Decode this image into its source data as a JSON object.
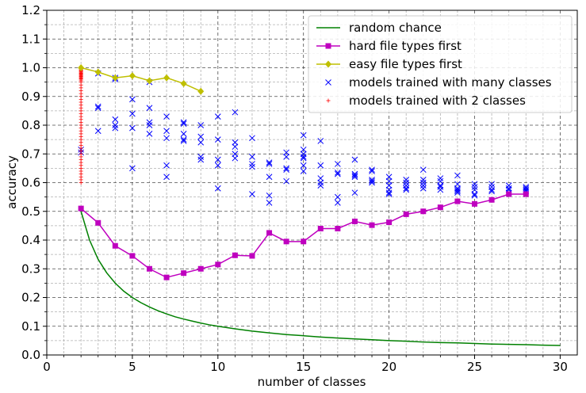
{
  "chart_data": {
    "type": "line",
    "xlabel": "number of classes",
    "ylabel": "accuracy",
    "xlim": [
      0,
      31
    ],
    "ylim": [
      0,
      1.2
    ],
    "x_ticks": [
      "0",
      "5",
      "10",
      "15",
      "20",
      "25",
      "30"
    ],
    "y_ticks": [
      "0.0",
      "0.1",
      "0.2",
      "0.3",
      "0.4",
      "0.5",
      "0.6",
      "0.7",
      "0.8",
      "0.9",
      "1.0",
      "1.1",
      "1.2"
    ],
    "grid": true,
    "legend_position": "top-right",
    "series": [
      {
        "name": "random chance",
        "style": "line",
        "color": "#008000",
        "x": [
          2,
          2.5,
          3,
          3.5,
          4,
          4.5,
          5,
          5.5,
          6,
          6.5,
          7,
          7.5,
          8,
          8.5,
          9,
          9.5,
          10,
          11,
          12,
          13,
          14,
          15,
          16,
          17,
          18,
          19,
          20,
          21,
          22,
          23,
          24,
          25,
          26,
          27,
          28,
          29,
          30
        ],
        "y": [
          0.5,
          0.4,
          0.333,
          0.286,
          0.25,
          0.222,
          0.2,
          0.182,
          0.167,
          0.154,
          0.143,
          0.133,
          0.125,
          0.118,
          0.111,
          0.105,
          0.1,
          0.091,
          0.083,
          0.077,
          0.071,
          0.067,
          0.0625,
          0.059,
          0.056,
          0.053,
          0.05,
          0.048,
          0.045,
          0.043,
          0.042,
          0.04,
          0.038,
          0.037,
          0.036,
          0.034,
          0.033
        ]
      },
      {
        "name": "hard file types first",
        "style": "line-square",
        "color": "#bf00bf",
        "x": [
          2,
          3,
          4,
          5,
          6,
          7,
          8,
          9,
          10,
          11,
          12,
          13,
          14,
          15,
          16,
          17,
          18,
          19,
          20,
          21,
          22,
          23,
          24,
          25,
          26,
          27,
          28
        ],
        "y": [
          0.51,
          0.46,
          0.38,
          0.345,
          0.3,
          0.27,
          0.285,
          0.3,
          0.315,
          0.347,
          0.345,
          0.425,
          0.395,
          0.395,
          0.44,
          0.44,
          0.465,
          0.452,
          0.462,
          0.49,
          0.5,
          0.514,
          0.535,
          0.526,
          0.54,
          0.56,
          0.56
        ]
      },
      {
        "name": "easy file types first",
        "style": "line-diamond",
        "color": "#bfbf00",
        "x": [
          2,
          3,
          4,
          5,
          6,
          7,
          8,
          9
        ],
        "y": [
          1.0,
          0.985,
          0.965,
          0.972,
          0.955,
          0.965,
          0.945,
          0.918
        ]
      },
      {
        "name": "models trained with many classes",
        "style": "x",
        "color": "#0000ff",
        "points": [
          [
            2,
            0.715
          ],
          [
            2,
            0.705
          ],
          [
            3,
            0.98
          ],
          [
            3,
            0.86
          ],
          [
            3,
            0.865
          ],
          [
            3,
            0.78
          ],
          [
            4,
            0.96
          ],
          [
            4,
            0.965
          ],
          [
            4,
            0.82
          ],
          [
            4,
            0.8
          ],
          [
            4,
            0.79
          ],
          [
            5,
            0.89
          ],
          [
            5,
            0.84
          ],
          [
            5,
            0.79
          ],
          [
            5,
            0.65
          ],
          [
            6,
            0.95
          ],
          [
            6,
            0.86
          ],
          [
            6,
            0.81
          ],
          [
            6,
            0.8
          ],
          [
            6,
            0.77
          ],
          [
            7,
            0.83
          ],
          [
            7,
            0.78
          ],
          [
            7,
            0.755
          ],
          [
            7,
            0.66
          ],
          [
            7,
            0.62
          ],
          [
            8,
            0.81
          ],
          [
            8,
            0.805
          ],
          [
            8,
            0.77
          ],
          [
            8,
            0.75
          ],
          [
            8,
            0.745
          ],
          [
            9,
            0.8
          ],
          [
            9,
            0.76
          ],
          [
            9,
            0.74
          ],
          [
            9,
            0.69
          ],
          [
            9,
            0.68
          ],
          [
            10,
            0.83
          ],
          [
            10,
            0.75
          ],
          [
            10,
            0.68
          ],
          [
            10,
            0.66
          ],
          [
            10,
            0.58
          ],
          [
            11,
            0.845
          ],
          [
            11,
            0.74
          ],
          [
            11,
            0.725
          ],
          [
            11,
            0.7
          ],
          [
            11,
            0.685
          ],
          [
            12,
            0.755
          ],
          [
            12,
            0.69
          ],
          [
            12,
            0.665
          ],
          [
            12,
            0.655
          ],
          [
            12,
            0.56
          ],
          [
            13,
            0.67
          ],
          [
            13,
            0.665
          ],
          [
            13,
            0.62
          ],
          [
            13,
            0.555
          ],
          [
            13,
            0.53
          ],
          [
            14,
            0.705
          ],
          [
            14,
            0.69
          ],
          [
            14,
            0.65
          ],
          [
            14,
            0.645
          ],
          [
            14,
            0.605
          ],
          [
            15,
            0.765
          ],
          [
            15,
            0.715
          ],
          [
            15,
            0.7
          ],
          [
            15,
            0.69
          ],
          [
            15,
            0.685
          ],
          [
            15,
            0.66
          ],
          [
            15,
            0.64
          ],
          [
            16,
            0.745
          ],
          [
            16,
            0.66
          ],
          [
            16,
            0.615
          ],
          [
            16,
            0.6
          ],
          [
            16,
            0.59
          ],
          [
            17,
            0.665
          ],
          [
            17,
            0.635
          ],
          [
            17,
            0.63
          ],
          [
            17,
            0.55
          ],
          [
            17,
            0.53
          ],
          [
            18,
            0.68
          ],
          [
            18,
            0.63
          ],
          [
            18,
            0.625
          ],
          [
            18,
            0.62
          ],
          [
            18,
            0.565
          ],
          [
            19,
            0.645
          ],
          [
            19,
            0.64
          ],
          [
            19,
            0.61
          ],
          [
            19,
            0.605
          ],
          [
            19,
            0.6
          ],
          [
            20,
            0.62
          ],
          [
            20,
            0.605
          ],
          [
            20,
            0.59
          ],
          [
            20,
            0.575
          ],
          [
            20,
            0.565
          ],
          [
            20,
            0.56
          ],
          [
            21,
            0.61
          ],
          [
            21,
            0.6
          ],
          [
            21,
            0.59
          ],
          [
            21,
            0.58
          ],
          [
            21,
            0.575
          ],
          [
            22,
            0.645
          ],
          [
            22,
            0.61
          ],
          [
            22,
            0.6
          ],
          [
            22,
            0.59
          ],
          [
            22,
            0.58
          ],
          [
            23,
            0.615
          ],
          [
            23,
            0.605
          ],
          [
            23,
            0.59
          ],
          [
            23,
            0.585
          ],
          [
            23,
            0.575
          ],
          [
            24,
            0.625
          ],
          [
            24,
            0.595
          ],
          [
            24,
            0.58
          ],
          [
            24,
            0.575
          ],
          [
            24,
            0.57
          ],
          [
            24,
            0.565
          ],
          [
            25,
            0.595
          ],
          [
            25,
            0.585
          ],
          [
            25,
            0.575
          ],
          [
            25,
            0.56
          ],
          [
            25,
            0.555
          ],
          [
            26,
            0.595
          ],
          [
            26,
            0.585
          ],
          [
            26,
            0.575
          ],
          [
            26,
            0.57
          ],
          [
            27,
            0.59
          ],
          [
            27,
            0.58
          ],
          [
            27,
            0.575
          ],
          [
            27,
            0.565
          ],
          [
            28,
            0.585
          ],
          [
            28,
            0.58
          ],
          [
            28,
            0.575
          ],
          [
            28,
            0.57
          ]
        ]
      },
      {
        "name": "models trained with 2 classes",
        "style": "plus",
        "color": "#ff0000",
        "x_value": 2,
        "y": [
          1.0,
          0.998,
          0.995,
          0.993,
          0.99,
          0.988,
          0.985,
          0.982,
          0.98,
          0.978,
          0.975,
          0.972,
          0.97,
          0.968,
          0.965,
          0.962,
          0.96,
          0.955,
          0.95,
          0.94,
          0.93,
          0.92,
          0.91,
          0.9,
          0.89,
          0.88,
          0.87,
          0.86,
          0.85,
          0.84,
          0.83,
          0.82,
          0.81,
          0.8,
          0.79,
          0.78,
          0.77,
          0.76,
          0.75,
          0.74,
          0.73,
          0.72,
          0.71,
          0.7,
          0.69,
          0.68,
          0.67,
          0.66,
          0.65,
          0.64,
          0.63,
          0.62,
          0.61,
          0.6
        ]
      }
    ]
  }
}
